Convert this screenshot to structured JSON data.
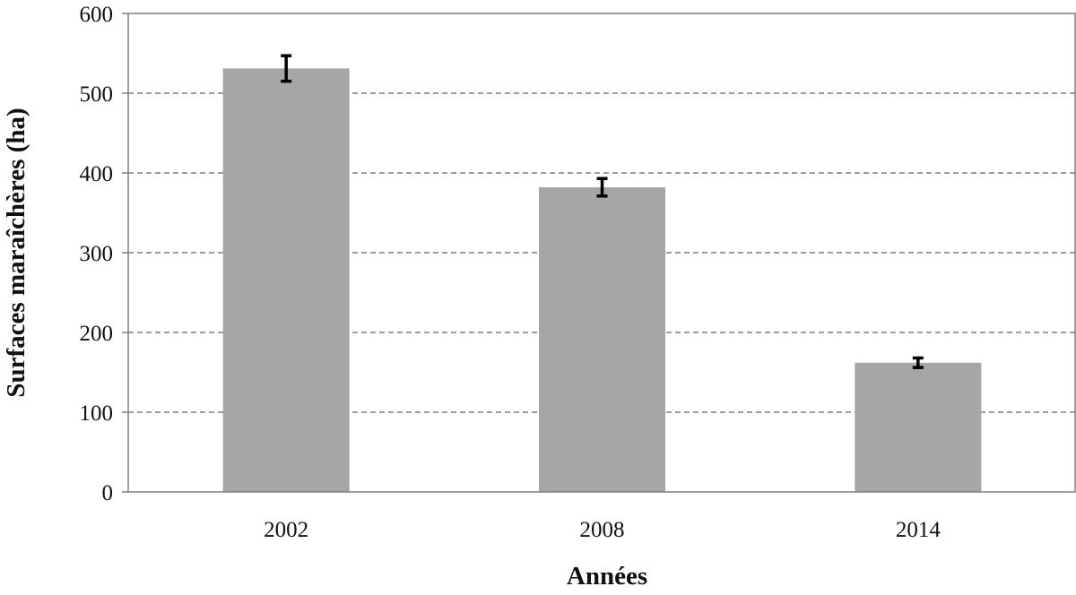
{
  "chart_data": {
    "type": "bar",
    "title": "",
    "xlabel": "Années",
    "ylabel": "Surfaces maraîchères (ha)",
    "categories": [
      "2002",
      "2008",
      "2014"
    ],
    "series": [
      {
        "values": [
          531,
          382,
          162
        ],
        "errors": [
          16,
          11,
          6
        ]
      }
    ],
    "ylim": [
      0,
      600
    ],
    "yticks": [
      0,
      100,
      200,
      300,
      400,
      500,
      600
    ],
    "grid": true,
    "legend": "none",
    "colors": {
      "bar": "#a6a6a6",
      "error_bar": "#000000",
      "grid": "#7f7f7f",
      "axis": "#7f7f7f"
    }
  }
}
